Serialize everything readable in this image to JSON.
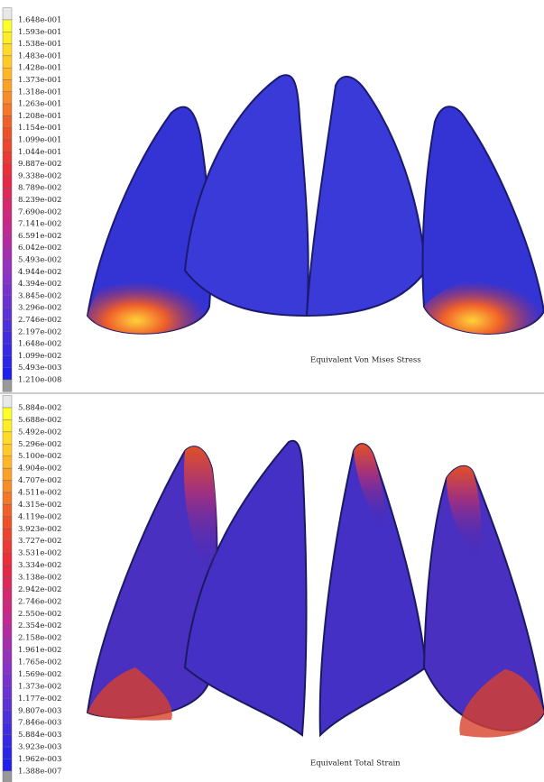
{
  "panels": [
    {
      "legend": [
        "1.648e-001",
        "1.593e-001",
        "1.538e-001",
        "1.483e-001",
        "1.428e-001",
        "1.373e-001",
        "1.318e-001",
        "1.263e-001",
        "1.208e-001",
        "1.154e-001",
        "1.099e-001",
        "1.044e-001",
        "9.887e-002",
        "9.338e-002",
        "8.789e-002",
        "8.239e-002",
        "7.690e-002",
        "7.141e-002",
        "6.591e-002",
        "6.042e-002",
        "5.493e-002",
        "4.944e-002",
        "4.394e-002",
        "3.845e-002",
        "3.296e-002",
        "2.746e-002",
        "2.197e-002",
        "1.648e-002",
        "1.099e-002",
        "5.493e-003",
        "1.210e-008"
      ],
      "caption": "Equivalent Von Mises Stress"
    },
    {
      "legend": [
        "5.884e-002",
        "5.688e-002",
        "5.492e-002",
        "5.296e-002",
        "5.100e-002",
        "4.904e-002",
        "4.707e-002",
        "4.511e-002",
        "4.315e-002",
        "4.119e-002",
        "3.923e-002",
        "3.727e-002",
        "3.531e-002",
        "3.334e-002",
        "3.138e-002",
        "2.942e-002",
        "2.746e-002",
        "2.550e-002",
        "2.354e-002",
        "2.158e-002",
        "1.961e-002",
        "1.765e-002",
        "1.569e-002",
        "1.373e-002",
        "1.177e-002",
        "9.807e-003",
        "7.846e-003",
        "5.884e-003",
        "3.923e-003",
        "1.962e-003",
        "1.388e-007"
      ],
      "caption": "Equivalent Total Strain"
    }
  ]
}
